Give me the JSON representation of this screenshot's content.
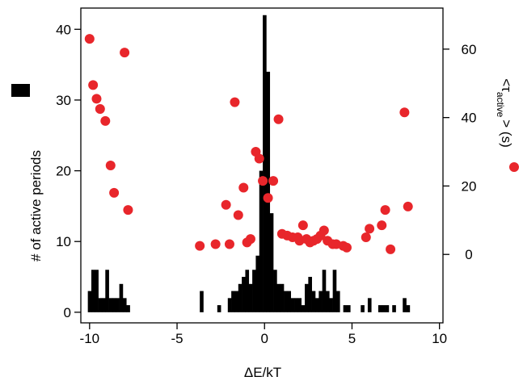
{
  "chart_data": {
    "type": "bar+scatter",
    "xlabel": "ΔE/kT",
    "ylabel_left": "# of active periods",
    "ylabel_right": "<τ",
    "ylabel_right_sub": "active",
    "ylabel_right_tail": "> (s)",
    "xlim": [
      -10.5,
      10.2
    ],
    "ylim_left": [
      -1.5,
      43
    ],
    "ylim_right": [
      -20,
      72
    ],
    "x_ticks": [
      -10,
      -5,
      0,
      5,
      10
    ],
    "y_left_ticks": [
      0,
      10,
      20,
      30,
      40
    ],
    "y_right_ticks": [
      0,
      20,
      40,
      60
    ],
    "histogram": {
      "name": "# of active periods",
      "color": "#000000",
      "bin_width": 0.2,
      "bins": [
        {
          "x": -10.0,
          "value": 3
        },
        {
          "x": -9.8,
          "value": 6
        },
        {
          "x": -9.6,
          "value": 6
        },
        {
          "x": -9.4,
          "value": 2
        },
        {
          "x": -9.2,
          "value": 2
        },
        {
          "x": -9.0,
          "value": 6
        },
        {
          "x": -8.8,
          "value": 2
        },
        {
          "x": -8.6,
          "value": 2
        },
        {
          "x": -8.4,
          "value": 2
        },
        {
          "x": -8.2,
          "value": 4
        },
        {
          "x": -8.0,
          "value": 2
        },
        {
          "x": -7.8,
          "value": 1
        },
        {
          "x": -3.6,
          "value": 3
        },
        {
          "x": -2.6,
          "value": 1
        },
        {
          "x": -2.0,
          "value": 2
        },
        {
          "x": -1.8,
          "value": 3
        },
        {
          "x": -1.6,
          "value": 3
        },
        {
          "x": -1.4,
          "value": 4
        },
        {
          "x": -1.2,
          "value": 5
        },
        {
          "x": -1.0,
          "value": 6
        },
        {
          "x": -0.8,
          "value": 4
        },
        {
          "x": -0.6,
          "value": 6
        },
        {
          "x": -0.4,
          "value": 8
        },
        {
          "x": -0.2,
          "value": 20
        },
        {
          "x": 0.0,
          "value": 42
        },
        {
          "x": 0.2,
          "value": 34
        },
        {
          "x": 0.4,
          "value": 14
        },
        {
          "x": 0.6,
          "value": 6
        },
        {
          "x": 0.8,
          "value": 4
        },
        {
          "x": 1.0,
          "value": 4
        },
        {
          "x": 1.2,
          "value": 3
        },
        {
          "x": 1.4,
          "value": 3
        },
        {
          "x": 1.6,
          "value": 2
        },
        {
          "x": 1.8,
          "value": 2
        },
        {
          "x": 2.0,
          "value": 2
        },
        {
          "x": 2.2,
          "value": 1
        },
        {
          "x": 2.4,
          "value": 4
        },
        {
          "x": 2.6,
          "value": 5
        },
        {
          "x": 2.8,
          "value": 3
        },
        {
          "x": 3.0,
          "value": 2
        },
        {
          "x": 3.2,
          "value": 3
        },
        {
          "x": 3.4,
          "value": 6
        },
        {
          "x": 3.6,
          "value": 3
        },
        {
          "x": 3.8,
          "value": 2
        },
        {
          "x": 4.0,
          "value": 6
        },
        {
          "x": 4.2,
          "value": 3
        },
        {
          "x": 4.6,
          "value": 1
        },
        {
          "x": 4.8,
          "value": 1
        },
        {
          "x": 5.6,
          "value": 1
        },
        {
          "x": 6.0,
          "value": 2
        },
        {
          "x": 6.6,
          "value": 1
        },
        {
          "x": 6.8,
          "value": 1
        },
        {
          "x": 7.0,
          "value": 1
        },
        {
          "x": 7.4,
          "value": 1
        },
        {
          "x": 8.0,
          "value": 2
        },
        {
          "x": 8.2,
          "value": 1
        }
      ]
    },
    "scatter": {
      "name": "<τactive> (s)",
      "color": "#e8262b",
      "points": [
        {
          "x": -10.0,
          "y": 63
        },
        {
          "x": -9.8,
          "y": 49.5
        },
        {
          "x": -9.6,
          "y": 45.5
        },
        {
          "x": -9.4,
          "y": 42.5
        },
        {
          "x": -9.1,
          "y": 39
        },
        {
          "x": -8.8,
          "y": 26
        },
        {
          "x": -8.6,
          "y": 18
        },
        {
          "x": -8.0,
          "y": 59
        },
        {
          "x": -7.8,
          "y": 13
        },
        {
          "x": -3.7,
          "y": 2.5
        },
        {
          "x": -2.8,
          "y": 3
        },
        {
          "x": -2.2,
          "y": 14.5
        },
        {
          "x": -2.0,
          "y": 3
        },
        {
          "x": -1.7,
          "y": 44.5
        },
        {
          "x": -1.5,
          "y": 11.5
        },
        {
          "x": -1.2,
          "y": 19.5
        },
        {
          "x": -1.0,
          "y": 3.5
        },
        {
          "x": -0.8,
          "y": 4.5
        },
        {
          "x": -0.5,
          "y": 30
        },
        {
          "x": -0.3,
          "y": 28
        },
        {
          "x": -0.1,
          "y": 21.5
        },
        {
          "x": 0.2,
          "y": 16.5
        },
        {
          "x": 0.5,
          "y": 21.5
        },
        {
          "x": 0.8,
          "y": 39.5
        },
        {
          "x": 1.0,
          "y": 6
        },
        {
          "x": 1.3,
          "y": 5.5
        },
        {
          "x": 1.6,
          "y": 5
        },
        {
          "x": 1.9,
          "y": 5
        },
        {
          "x": 2.0,
          "y": 4
        },
        {
          "x": 2.2,
          "y": 8.5
        },
        {
          "x": 2.4,
          "y": 4.5
        },
        {
          "x": 2.6,
          "y": 3.5
        },
        {
          "x": 2.8,
          "y": 4
        },
        {
          "x": 3.0,
          "y": 4.5
        },
        {
          "x": 3.2,
          "y": 5.5
        },
        {
          "x": 3.4,
          "y": 7
        },
        {
          "x": 3.6,
          "y": 4
        },
        {
          "x": 3.9,
          "y": 3
        },
        {
          "x": 4.1,
          "y": 3
        },
        {
          "x": 4.5,
          "y": 2.5
        },
        {
          "x": 4.7,
          "y": 2
        },
        {
          "x": 5.8,
          "y": 5
        },
        {
          "x": 6.0,
          "y": 7.5
        },
        {
          "x": 6.7,
          "y": 8.5
        },
        {
          "x": 6.9,
          "y": 13
        },
        {
          "x": 7.2,
          "y": 1.5
        },
        {
          "x": 8.0,
          "y": 41.5
        },
        {
          "x": 8.2,
          "y": 14
        }
      ]
    }
  }
}
